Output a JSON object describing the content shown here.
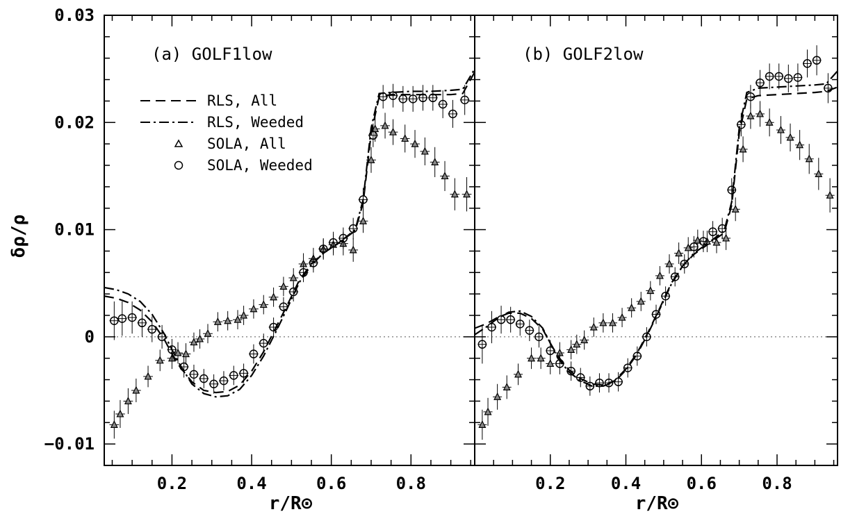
{
  "figure": {
    "ylabel": "δρ/ρ",
    "xlabel": "r/R⊙"
  },
  "chart_data": [
    {
      "type": "scatter",
      "title": "(a) GOLF1low",
      "xlabel": "r/R⊙",
      "ylabel": "δρ/ρ",
      "xlim": [
        0.03,
        0.96
      ],
      "ylim": [
        -0.012,
        0.03
      ],
      "xticks": [
        0.2,
        0.4,
        0.6,
        0.8
      ],
      "xtick_labels": [
        "0.2",
        "0.4",
        "0.6",
        "0.8"
      ],
      "yticks": [
        -0.01,
        0,
        0.01,
        0.02,
        0.03
      ],
      "ytick_labels": [
        "−0.01",
        "0",
        "0.01",
        "0.02",
        "0.03"
      ],
      "zero_line": true,
      "legend": [
        {
          "label": "RLS, All",
          "style": "dashed"
        },
        {
          "label": "RLS, Weeded",
          "style": "dashdot"
        },
        {
          "label": "SOLA, All",
          "style": "triangle"
        },
        {
          "label": "SOLA, Weeded",
          "style": "circle"
        }
      ],
      "series": [
        {
          "name": "RLS, All",
          "kind": "line",
          "dash": "14 8",
          "x": [
            0.03,
            0.06,
            0.09,
            0.12,
            0.15,
            0.18,
            0.2,
            0.22,
            0.25,
            0.28,
            0.31,
            0.34,
            0.37,
            0.4,
            0.43,
            0.46,
            0.49,
            0.52,
            0.55,
            0.58,
            0.62,
            0.66,
            0.68,
            0.7,
            0.72,
            0.75,
            0.8,
            0.85,
            0.9,
            0.93,
            0.96
          ],
          "y": [
            0.0038,
            0.0036,
            0.0032,
            0.0025,
            0.0014,
            -0.0002,
            -0.0016,
            -0.0028,
            -0.0042,
            -0.005,
            -0.0052,
            -0.0051,
            -0.0045,
            -0.0032,
            -0.0014,
            0.0008,
            0.003,
            0.0053,
            0.0068,
            0.0078,
            0.0088,
            0.0099,
            0.0125,
            0.019,
            0.0224,
            0.0226,
            0.0226,
            0.0226,
            0.0226,
            0.0227,
            0.0247
          ]
        },
        {
          "name": "RLS, Weeded",
          "kind": "line",
          "dash": "14 5 3 5",
          "x": [
            0.03,
            0.06,
            0.09,
            0.12,
            0.15,
            0.18,
            0.2,
            0.22,
            0.25,
            0.28,
            0.31,
            0.34,
            0.37,
            0.4,
            0.43,
            0.46,
            0.49,
            0.52,
            0.55,
            0.58,
            0.62,
            0.66,
            0.68,
            0.7,
            0.72,
            0.75,
            0.8,
            0.85,
            0.9,
            0.93,
            0.96
          ],
          "y": [
            0.0046,
            0.0044,
            0.004,
            0.0033,
            0.0021,
            0.0003,
            -0.0012,
            -0.0026,
            -0.0044,
            -0.0053,
            -0.0056,
            -0.0055,
            -0.0049,
            -0.0036,
            -0.0018,
            0.0004,
            0.0027,
            0.0051,
            0.0067,
            0.0078,
            0.0088,
            0.01,
            0.0128,
            0.0195,
            0.0227,
            0.0228,
            0.0229,
            0.0229,
            0.023,
            0.0231,
            0.025
          ]
        },
        {
          "name": "SOLA, All",
          "kind": "points",
          "marker": "triangle",
          "x": [
            0.055,
            0.07,
            0.09,
            0.11,
            0.14,
            0.17,
            0.2,
            0.215,
            0.235,
            0.255,
            0.27,
            0.29,
            0.315,
            0.34,
            0.365,
            0.38,
            0.405,
            0.43,
            0.455,
            0.48,
            0.505,
            0.53,
            0.555,
            0.58,
            0.605,
            0.63,
            0.655,
            0.68,
            0.7,
            0.71,
            0.735,
            0.755,
            0.785,
            0.81,
            0.835,
            0.86,
            0.885,
            0.91,
            0.94
          ],
          "y": [
            -0.0082,
            -0.0072,
            -0.006,
            -0.005,
            -0.0037,
            -0.0022,
            -0.002,
            -0.0015,
            -0.0016,
            -0.0005,
            -0.0002,
            0.0003,
            0.0014,
            0.0015,
            0.0016,
            0.002,
            0.0026,
            0.003,
            0.0037,
            0.0047,
            0.0055,
            0.0068,
            0.0073,
            0.0082,
            0.0086,
            0.0087,
            0.0081,
            0.0108,
            0.0165,
            0.0194,
            0.0197,
            0.0191,
            0.0185,
            0.018,
            0.0173,
            0.0163,
            0.015,
            0.0133,
            0.0133
          ],
          "xerr": 0.012,
          "yerr": [
            0.0013,
            0.0013,
            0.0012,
            0.0011,
            0.001,
            0.001,
            0.001,
            0.001,
            0.001,
            0.0009,
            0.0009,
            0.0009,
            0.0009,
            0.0009,
            0.0009,
            0.0009,
            0.0009,
            0.0009,
            0.0009,
            0.0009,
            0.0009,
            0.001,
            0.001,
            0.001,
            0.001,
            0.0011,
            0.0011,
            0.0011,
            0.0012,
            0.0012,
            0.0012,
            0.0012,
            0.0013,
            0.0013,
            0.0013,
            0.0014,
            0.0014,
            0.0015,
            0.0016
          ]
        },
        {
          "name": "SOLA, Weeded",
          "kind": "points",
          "marker": "circle",
          "x": [
            0.055,
            0.075,
            0.1,
            0.125,
            0.15,
            0.175,
            0.2,
            0.23,
            0.255,
            0.28,
            0.305,
            0.33,
            0.355,
            0.38,
            0.405,
            0.43,
            0.455,
            0.48,
            0.505,
            0.53,
            0.555,
            0.58,
            0.605,
            0.63,
            0.655,
            0.68,
            0.705,
            0.73,
            0.755,
            0.78,
            0.805,
            0.83,
            0.855,
            0.88,
            0.905,
            0.935
          ],
          "y": [
            0.0015,
            0.0017,
            0.0018,
            0.0013,
            0.0007,
            0.0,
            -0.0012,
            -0.0028,
            -0.0035,
            -0.0039,
            -0.0044,
            -0.0041,
            -0.0036,
            -0.0034,
            -0.0016,
            -0.0006,
            0.0009,
            0.0028,
            0.0042,
            0.006,
            0.0069,
            0.0082,
            0.0088,
            0.0092,
            0.0101,
            0.0128,
            0.0188,
            0.0224,
            0.0225,
            0.0222,
            0.0222,
            0.0223,
            0.0223,
            0.0217,
            0.0208,
            0.0221
          ],
          "xerr": 0.012,
          "yerr": [
            0.0018,
            0.0016,
            0.0015,
            0.0013,
            0.0012,
            0.0011,
            0.001,
            0.001,
            0.0009,
            0.0009,
            0.0009,
            0.0009,
            0.0009,
            0.0009,
            0.0009,
            0.0009,
            0.0009,
            0.0009,
            0.0009,
            0.0009,
            0.0009,
            0.0009,
            0.001,
            0.001,
            0.001,
            0.0011,
            0.0011,
            0.0011,
            0.0011,
            0.0012,
            0.0012,
            0.0012,
            0.0012,
            0.0013,
            0.0013,
            0.0014
          ]
        }
      ]
    },
    {
      "type": "scatter",
      "title": "(b) GOLF2low",
      "xlabel": "r/R⊙",
      "ylabel": "δρ/ρ",
      "xlim": [
        0.0,
        0.96
      ],
      "ylim": [
        -0.012,
        0.03
      ],
      "xticks": [
        0.2,
        0.4,
        0.6,
        0.8
      ],
      "xtick_labels": [
        "0.2",
        "0.4",
        "0.6",
        "0.8"
      ],
      "yticks": [
        -0.01,
        0,
        0.01,
        0.02,
        0.03
      ],
      "zero_line": true,
      "series": [
        {
          "name": "RLS, All",
          "kind": "line",
          "dash": "14 8",
          "x": [
            0.0,
            0.03,
            0.06,
            0.09,
            0.12,
            0.15,
            0.18,
            0.2,
            0.22,
            0.25,
            0.28,
            0.31,
            0.34,
            0.37,
            0.4,
            0.43,
            0.46,
            0.49,
            0.52,
            0.55,
            0.58,
            0.62,
            0.66,
            0.68,
            0.7,
            0.72,
            0.75,
            0.8,
            0.85,
            0.9,
            0.93,
            0.96
          ],
          "y": [
            0.0008,
            0.0012,
            0.0018,
            0.0022,
            0.0022,
            0.0017,
            0.0007,
            -0.0006,
            -0.0018,
            -0.0031,
            -0.0039,
            -0.0044,
            -0.0045,
            -0.0041,
            -0.003,
            -0.0015,
            0.0005,
            0.0027,
            0.005,
            0.0066,
            0.0077,
            0.0087,
            0.0097,
            0.0123,
            0.019,
            0.0222,
            0.0225,
            0.0226,
            0.0227,
            0.0228,
            0.0229,
            0.0233
          ]
        },
        {
          "name": "RLS, Weeded",
          "kind": "line",
          "dash": "14 5 3 5",
          "x": [
            0.0,
            0.03,
            0.06,
            0.09,
            0.12,
            0.15,
            0.18,
            0.2,
            0.22,
            0.25,
            0.28,
            0.31,
            0.34,
            0.37,
            0.4,
            0.43,
            0.46,
            0.49,
            0.52,
            0.55,
            0.58,
            0.62,
            0.66,
            0.68,
            0.7,
            0.72,
            0.75,
            0.8,
            0.85,
            0.9,
            0.93,
            0.96
          ],
          "y": [
            0.0002,
            0.0009,
            0.0017,
            0.0023,
            0.0024,
            0.0019,
            0.0008,
            -0.0006,
            -0.002,
            -0.0033,
            -0.0041,
            -0.0046,
            -0.0046,
            -0.0042,
            -0.0031,
            -0.0016,
            0.0004,
            0.0026,
            0.0049,
            0.0066,
            0.0078,
            0.0088,
            0.0099,
            0.0126,
            0.0195,
            0.0228,
            0.0232,
            0.0233,
            0.0234,
            0.0235,
            0.0236,
            0.0248
          ]
        },
        {
          "name": "SOLA, All",
          "kind": "points",
          "marker": "triangle",
          "x": [
            0.02,
            0.035,
            0.06,
            0.085,
            0.115,
            0.15,
            0.175,
            0.2,
            0.225,
            0.255,
            0.27,
            0.29,
            0.315,
            0.34,
            0.365,
            0.39,
            0.415,
            0.44,
            0.465,
            0.49,
            0.515,
            0.54,
            0.565,
            0.59,
            0.615,
            0.64,
            0.665,
            0.69,
            0.71,
            0.73,
            0.755,
            0.78,
            0.81,
            0.835,
            0.86,
            0.885,
            0.91,
            0.94
          ],
          "y": [
            -0.0082,
            -0.007,
            -0.0056,
            -0.0047,
            -0.0035,
            -0.002,
            -0.002,
            -0.0025,
            -0.0015,
            -0.0012,
            -0.0007,
            -0.0003,
            0.0009,
            0.0013,
            0.0013,
            0.0018,
            0.0027,
            0.0033,
            0.0043,
            0.0057,
            0.0068,
            0.0078,
            0.0083,
            0.009,
            0.0089,
            0.0088,
            0.0092,
            0.0119,
            0.0175,
            0.0206,
            0.0208,
            0.02,
            0.0193,
            0.0186,
            0.0179,
            0.0166,
            0.0152,
            0.0132
          ],
          "xerr": 0.012,
          "yerr": [
            0.0014,
            0.0013,
            0.0012,
            0.0011,
            0.001,
            0.001,
            0.001,
            0.001,
            0.001,
            0.0009,
            0.0009,
            0.0009,
            0.0009,
            0.0009,
            0.0009,
            0.0009,
            0.0009,
            0.0009,
            0.0009,
            0.0009,
            0.0009,
            0.001,
            0.001,
            0.001,
            0.001,
            0.001,
            0.0011,
            0.0011,
            0.0012,
            0.0012,
            0.0012,
            0.0013,
            0.0013,
            0.0013,
            0.0014,
            0.0014,
            0.0015,
            0.0016
          ]
        },
        {
          "name": "SOLA, Weeded",
          "kind": "points",
          "marker": "circle",
          "x": [
            0.02,
            0.045,
            0.07,
            0.095,
            0.12,
            0.145,
            0.17,
            0.2,
            0.225,
            0.255,
            0.28,
            0.305,
            0.33,
            0.355,
            0.38,
            0.405,
            0.43,
            0.455,
            0.48,
            0.505,
            0.53,
            0.555,
            0.58,
            0.605,
            0.63,
            0.655,
            0.68,
            0.705,
            0.73,
            0.755,
            0.78,
            0.805,
            0.83,
            0.855,
            0.88,
            0.905,
            0.935
          ],
          "y": [
            -0.0007,
            0.0009,
            0.0016,
            0.0016,
            0.0012,
            0.0006,
            0.0,
            -0.0013,
            -0.0025,
            -0.0032,
            -0.0038,
            -0.0046,
            -0.0043,
            -0.0043,
            -0.0042,
            -0.0029,
            -0.0018,
            0.0,
            0.0021,
            0.0038,
            0.0056,
            0.0068,
            0.0084,
            0.0089,
            0.0098,
            0.0101,
            0.0137,
            0.0198,
            0.0224,
            0.0237,
            0.0243,
            0.0243,
            0.0241,
            0.0242,
            0.0255,
            0.0258,
            0.0232
          ],
          "xerr": 0.012,
          "yerr": [
            0.0018,
            0.0015,
            0.0013,
            0.0012,
            0.0011,
            0.001,
            0.001,
            0.001,
            0.001,
            0.0009,
            0.0009,
            0.0009,
            0.0009,
            0.0009,
            0.0009,
            0.0009,
            0.0009,
            0.0009,
            0.0009,
            0.0009,
            0.0009,
            0.0009,
            0.001,
            0.001,
            0.001,
            0.001,
            0.0011,
            0.0011,
            0.0011,
            0.0012,
            0.0012,
            0.0012,
            0.0013,
            0.0013,
            0.0013,
            0.0014,
            0.0014
          ]
        }
      ]
    }
  ]
}
